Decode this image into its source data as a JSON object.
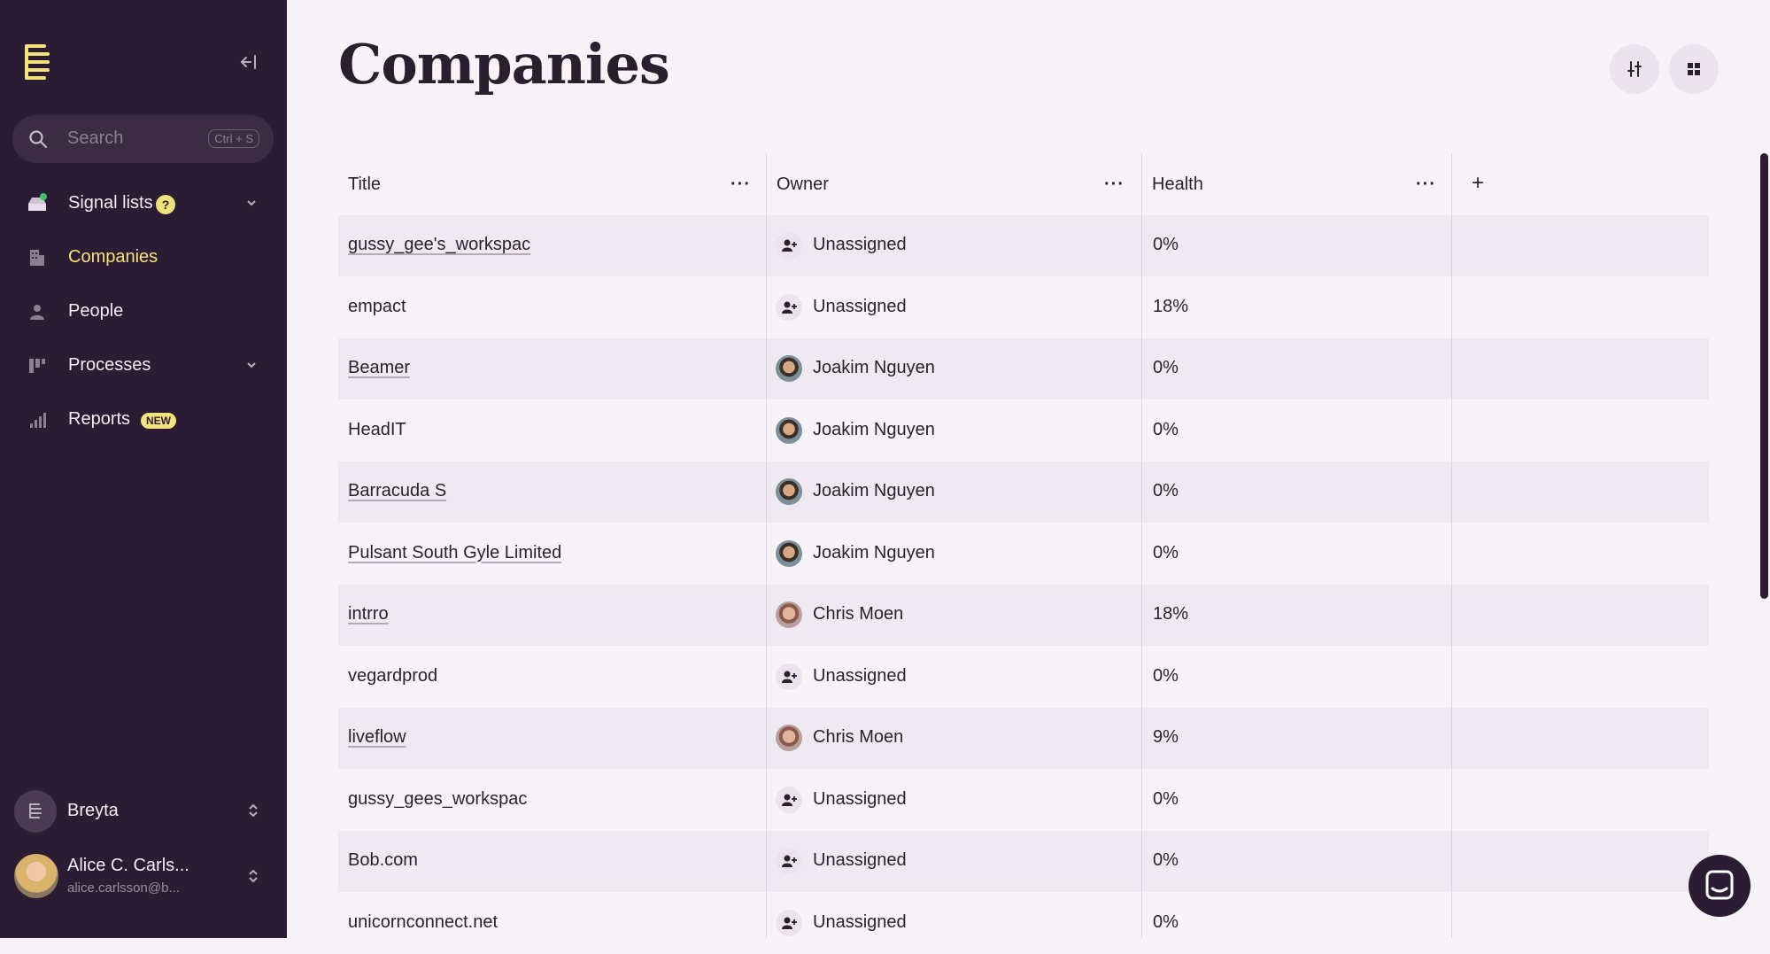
{
  "sidebar": {
    "search": {
      "placeholder": "Search",
      "shortcut": "Ctrl + S"
    },
    "items": [
      {
        "label": "Signal lists",
        "badge": "?"
      },
      {
        "label": "Companies"
      },
      {
        "label": "People"
      },
      {
        "label": "Processes"
      },
      {
        "label": "Reports",
        "badge": "NEW"
      }
    ],
    "workspace": {
      "name": "Breyta"
    },
    "user": {
      "name": "Alice C. Carls...",
      "email": "alice.carlsson@b..."
    }
  },
  "page": {
    "title": "Companies"
  },
  "table": {
    "columns": {
      "title": "Title",
      "owner": "Owner",
      "health": "Health",
      "more": "···",
      "add": "+"
    },
    "rows": [
      {
        "title": "gussy_gee's_workspac",
        "owner": "Unassigned",
        "health": "0%"
      },
      {
        "title": "empact",
        "owner": "Unassigned",
        "health": "18%"
      },
      {
        "title": "Beamer",
        "owner": "Joakim Nguyen",
        "health": "0%"
      },
      {
        "title": "HeadIT",
        "owner": "Joakim Nguyen",
        "health": "0%"
      },
      {
        "title": "Barracuda S",
        "owner": "Joakim Nguyen",
        "health": "0%"
      },
      {
        "title": "Pulsant South Gyle Limited",
        "owner": "Joakim Nguyen",
        "health": "0%"
      },
      {
        "title": "intrro",
        "owner": "Chris Moen",
        "health": "18%"
      },
      {
        "title": "vegardprod",
        "owner": "Unassigned",
        "health": "0%"
      },
      {
        "title": "liveflow",
        "owner": "Chris Moen",
        "health": "9%"
      },
      {
        "title": "gussy_gees_workspac",
        "owner": "Unassigned",
        "health": "0%"
      },
      {
        "title": "Bob.com",
        "owner": "Unassigned",
        "health": "0%"
      },
      {
        "title": "unicornconnect.net",
        "owner": "Unassigned",
        "health": "0%"
      }
    ]
  },
  "colors": {
    "sidebar": "#2c1c33",
    "accent": "#f3e37a",
    "signal_dot": "#3ec46d"
  }
}
